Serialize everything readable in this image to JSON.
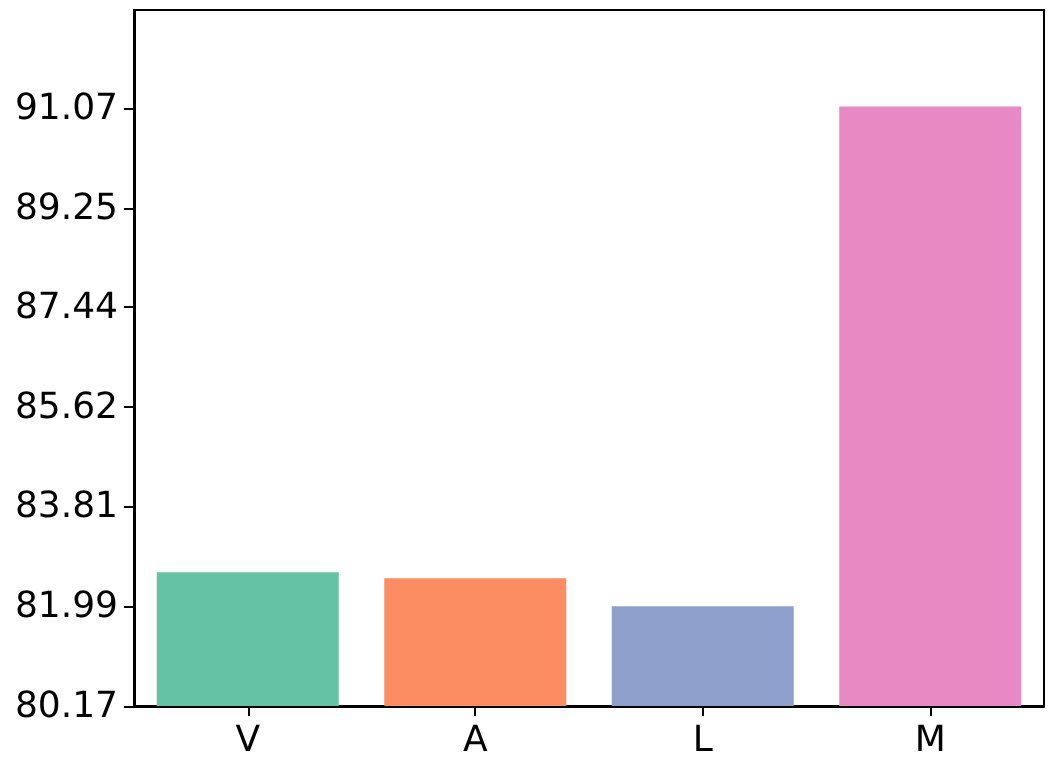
{
  "chart_data": {
    "type": "bar",
    "categories": [
      "V",
      "A",
      "L",
      "M"
    ],
    "values": [
      82.61,
      82.5,
      81.99,
      91.1
    ],
    "colors": [
      "#66c2a5",
      "#fc8d62",
      "#8da0cb",
      "#e78ac3"
    ],
    "ylim": [
      80.17,
      92.86
    ],
    "yticks": [
      80.17,
      81.99,
      83.81,
      85.62,
      87.44,
      89.25,
      91.07
    ],
    "grid": false
  }
}
